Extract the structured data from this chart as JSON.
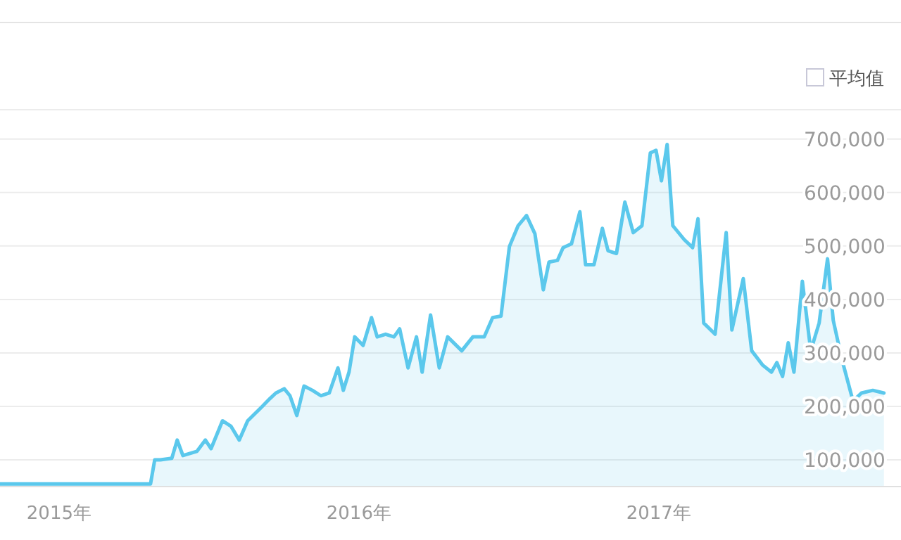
{
  "chart_data": {
    "type": "area",
    "color": "#5bc8ec",
    "x": [
      2014.803,
      2015.305,
      2015.319,
      2015.338,
      2015.376,
      2015.394,
      2015.413,
      2015.46,
      2015.488,
      2015.507,
      2015.545,
      2015.573,
      2015.601,
      2015.629,
      2015.676,
      2015.704,
      2015.723,
      2015.751,
      2015.77,
      2015.793,
      2015.817,
      2015.845,
      2015.873,
      2015.901,
      2015.93,
      2015.948,
      2015.967,
      2015.986,
      2016.014,
      2016.042,
      2016.061,
      2016.089,
      2016.117,
      2016.136,
      2016.164,
      2016.192,
      2016.211,
      2016.239,
      2016.268,
      2016.296,
      2016.343,
      2016.38,
      2016.418,
      2016.446,
      2016.474,
      2016.502,
      2016.531,
      2016.559,
      2016.587,
      2016.615,
      2016.634,
      2016.662,
      2016.681,
      2016.709,
      2016.737,
      2016.756,
      2016.784,
      2016.812,
      2016.831,
      2016.859,
      2016.887,
      2016.915,
      2016.944,
      2016.972,
      2016.991,
      2017.009,
      2017.028,
      2017.047,
      2017.085,
      2017.113,
      2017.131,
      2017.15,
      2017.188,
      2017.225,
      2017.244,
      2017.282,
      2017.31,
      2017.347,
      2017.376,
      2017.394,
      2017.413,
      2017.432,
      2017.451,
      2017.479,
      2017.507,
      2017.535,
      2017.563,
      2017.582,
      2017.61,
      2017.648,
      2017.676,
      2017.714,
      2017.751
    ],
    "values": [
      55000,
      55000,
      100000,
      100000,
      103000,
      137000,
      108000,
      116000,
      137000,
      121000,
      173000,
      163000,
      137000,
      173000,
      199000,
      215000,
      225000,
      233000,
      220000,
      183000,
      238000,
      230000,
      220000,
      225000,
      272000,
      230000,
      264000,
      330000,
      314000,
      366000,
      330000,
      335000,
      330000,
      345000,
      272000,
      330000,
      264000,
      371000,
      272000,
      330000,
      304000,
      330000,
      330000,
      366000,
      369000,
      499000,
      538000,
      557000,
      523000,
      418000,
      470000,
      473000,
      497000,
      504000,
      564000,
      465000,
      465000,
      533000,
      491000,
      486000,
      582000,
      525000,
      538000,
      674000,
      679000,
      622000,
      690000,
      538000,
      512000,
      497000,
      551000,
      356000,
      335000,
      525000,
      343000,
      439000,
      304000,
      277000,
      264000,
      282000,
      256000,
      319000,
      264000,
      434000,
      304000,
      356000,
      476000,
      361000,
      290000,
      210000,
      225000,
      230000,
      225000
    ],
    "xlim": [
      2014.803,
      2017.808
    ],
    "xticks": [
      {
        "value": 2015,
        "label": "2015年"
      },
      {
        "value": 2016,
        "label": "2016年"
      },
      {
        "value": 2017,
        "label": "2017年"
      }
    ],
    "ylim": [
      50000,
      755000
    ],
    "yticks": [
      {
        "value": 100000,
        "label": "100,000"
      },
      {
        "value": 200000,
        "label": "200,000"
      },
      {
        "value": 300000,
        "label": "300,000"
      },
      {
        "value": 400000,
        "label": "400,000"
      },
      {
        "value": 500000,
        "label": "500,000"
      },
      {
        "value": 600000,
        "label": "600,000"
      },
      {
        "value": 700000,
        "label": "700,000"
      }
    ],
    "grid": "y",
    "annotations": [
      "平均值"
    ]
  }
}
